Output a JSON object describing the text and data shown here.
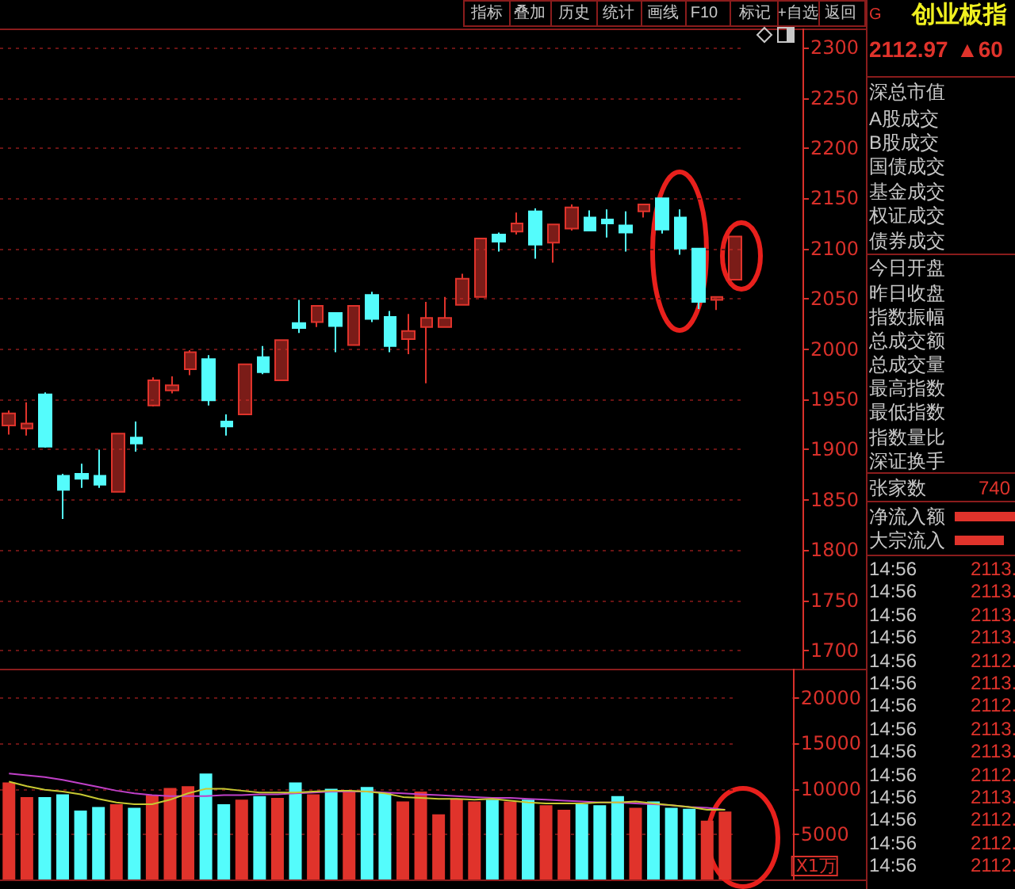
{
  "chart_data": [
    {
      "type": "candlestick",
      "categories": [
        null,
        null,
        null,
        null,
        null,
        null,
        null,
        null,
        null,
        null,
        null,
        null,
        null,
        null,
        null,
        null,
        null,
        null,
        null,
        null,
        null,
        null,
        null,
        null,
        null,
        null,
        null,
        null,
        null,
        null,
        null,
        null,
        null,
        null,
        null,
        null,
        null,
        null,
        null,
        null,
        null
      ],
      "ohlc": [
        [
          1924,
          1939,
          1915,
          1936
        ],
        [
          1921,
          1947,
          1914,
          1926
        ],
        [
          1955,
          1957,
          1902,
          1903
        ],
        [
          1874,
          1876,
          1831,
          1860
        ],
        [
          1876,
          1886,
          1862,
          1871
        ],
        [
          1874,
          1900,
          1862,
          1865
        ],
        [
          1858,
          1916,
          1858,
          1916
        ],
        [
          1912,
          1928,
          1898,
          1906
        ],
        [
          1944,
          1972,
          1943,
          1969
        ],
        [
          1959,
          1973,
          1956,
          1964
        ],
        [
          1980,
          1999,
          1974,
          1997
        ],
        [
          1990,
          1994,
          1944,
          1949
        ],
        [
          1928,
          1935,
          1914,
          1923
        ],
        [
          1935,
          1985,
          1935,
          1985
        ],
        [
          1992,
          2003,
          1975,
          1977
        ],
        [
          1969,
          2009,
          1969,
          2009
        ],
        [
          2026,
          2049,
          2016,
          2021
        ],
        [
          2027,
          2043,
          2022,
          2043
        ],
        [
          2036,
          2036,
          1997,
          2023
        ],
        [
          2004,
          2043,
          2004,
          2043
        ],
        [
          2054,
          2057,
          2027,
          2030
        ],
        [
          2032,
          2038,
          1997,
          2003
        ],
        [
          2010,
          2035,
          1995,
          2018
        ],
        [
          2022,
          2047,
          1966,
          2031
        ],
        [
          2022,
          2052,
          2022,
          2031
        ],
        [
          2044,
          2075,
          2044,
          2070
        ],
        [
          2052,
          2110,
          2052,
          2110
        ],
        [
          2114,
          2116,
          2097,
          2107
        ],
        [
          2117,
          2136,
          2114,
          2125
        ],
        [
          2137,
          2140,
          2090,
          2104
        ],
        [
          2106,
          2124,
          2086,
          2124
        ],
        [
          2120,
          2144,
          2118,
          2141
        ],
        [
          2131,
          2138,
          2118,
          2118
        ],
        [
          2129,
          2139,
          2111,
          2125
        ],
        [
          2123,
          2137,
          2097,
          2116
        ],
        [
          2137,
          2144,
          2131,
          2144
        ],
        [
          2150,
          2150,
          2115,
          2119
        ],
        [
          2131,
          2139,
          2094,
          2100
        ],
        [
          2100,
          2100,
          2040,
          2047
        ],
        [
          2049,
          2052,
          2039,
          2052
        ],
        [
          2069,
          2112,
          2069,
          2112
        ]
      ],
      "colors": [
        "#e0332b",
        "#e0332b",
        "#54fcfc",
        "#54fcfc",
        "#54fcfc",
        "#54fcfc",
        "#e0332b",
        "#54fcfc",
        "#e0332b",
        "#e0332b",
        "#e0332b",
        "#54fcfc",
        "#54fcfc",
        "#e0332b",
        "#54fcfc",
        "#e0332b",
        "#54fcfc",
        "#e0332b",
        "#54fcfc",
        "#e0332b",
        "#54fcfc",
        "#54fcfc",
        "#e0332b",
        "#e0332b",
        "#e0332b",
        "#e0332b",
        "#e0332b",
        "#54fcfc",
        "#e0332b",
        "#54fcfc",
        "#e0332b",
        "#e0332b",
        "#54fcfc",
        "#54fcfc",
        "#54fcfc",
        "#e0332b",
        "#54fcfc",
        "#54fcfc",
        "#54fcfc",
        "#e0332b",
        "#e0332b"
      ],
      "ylim": [
        1682,
        2319
      ],
      "yticks": [
        1700,
        1750,
        1800,
        1850,
        1900,
        1950,
        2000,
        2050,
        2100,
        2150,
        2200,
        2250,
        2300
      ],
      "grid": "y",
      "tick_labels": "y"
    },
    {
      "type": "bar",
      "ylabel": "X1万",
      "categories": [
        null,
        null,
        null,
        null,
        null,
        null,
        null,
        null,
        null,
        null,
        null,
        null,
        null,
        null,
        null,
        null,
        null,
        null,
        null,
        null,
        null,
        null,
        null,
        null,
        null,
        null,
        null,
        null,
        null,
        null,
        null,
        null,
        null,
        null,
        null,
        null,
        null,
        null,
        null,
        null,
        null
      ],
      "series": [
        {
          "type": "bar",
          "values": [
            10700,
            9100,
            9100,
            9400,
            7600,
            8000,
            8300,
            7900,
            9300,
            10100,
            10300,
            11700,
            8300,
            8800,
            9200,
            9000,
            10700,
            9400,
            10000,
            9800,
            10200,
            9600,
            8600,
            9700,
            7200,
            8900,
            8600,
            8800,
            8600,
            8800,
            8200,
            7700,
            8300,
            8200,
            9200,
            7900,
            8600,
            7900,
            7800,
            6500,
            7500
          ],
          "colors": [
            "#e0332b",
            "#e0332b",
            "#54fcfc",
            "#54fcfc",
            "#54fcfc",
            "#54fcfc",
            "#e0332b",
            "#54fcfc",
            "#e0332b",
            "#e0332b",
            "#e0332b",
            "#54fcfc",
            "#54fcfc",
            "#e0332b",
            "#54fcfc",
            "#e0332b",
            "#54fcfc",
            "#e0332b",
            "#54fcfc",
            "#e0332b",
            "#54fcfc",
            "#54fcfc",
            "#e0332b",
            "#e0332b",
            "#e0332b",
            "#e0332b",
            "#e0332b",
            "#54fcfc",
            "#e0332b",
            "#54fcfc",
            "#e0332b",
            "#e0332b",
            "#54fcfc",
            "#54fcfc",
            "#54fcfc",
            "#e0332b",
            "#54fcfc",
            "#54fcfc",
            "#54fcfc",
            "#e0332b",
            "#e0332b"
          ]
        },
        {
          "type": "line",
          "color": "#c040c8",
          "values": [
            11700,
            11500,
            11300,
            11000,
            10600,
            10200,
            9800,
            9500,
            9300,
            9200,
            9200,
            9200,
            9300,
            9300,
            9400,
            9400,
            9500,
            9600,
            9700,
            9700,
            9700,
            9600,
            9500,
            9400,
            9300,
            9200,
            9100,
            9000,
            9000,
            8900,
            8800,
            8700,
            8600,
            8500,
            8500,
            8400,
            8300,
            8200,
            8000,
            7900,
            7700
          ]
        },
        {
          "type": "line",
          "color": "#c8c832",
          "values": [
            10800,
            10300,
            9900,
            9700,
            9400,
            8900,
            8500,
            8300,
            8300,
            8800,
            9500,
            10000,
            10000,
            9800,
            9600,
            9600,
            9600,
            9700,
            9800,
            9800,
            9700,
            9500,
            9100,
            9000,
            8900,
            8900,
            8800,
            8900,
            8700,
            8500,
            8400,
            8400,
            8400,
            8500,
            8500,
            8600,
            8400,
            8200,
            8000,
            7700,
            7700
          ]
        }
      ],
      "ylim": [
        0,
        23250
      ],
      "yticks": [
        5000,
        10000,
        15000,
        20000
      ],
      "grid": "y",
      "tick_labels": "y"
    },
    {
      "type": "other",
      "title": "创业板指",
      "annotations": [
        "指标",
        "叠加",
        "历史",
        "统计",
        "画线",
        "F10",
        "标记",
        "+自选",
        "返回",
        "G",
        "2112.97",
        "▲60",
        "深总市值",
        "A股成交",
        "B股成交",
        "国债成交",
        "基金成交",
        "权证成交",
        "债券成交",
        "今日开盘",
        "昨日收盘",
        "指数振幅",
        "总成交额",
        "总成交量",
        "最高指数",
        "最低指数",
        "指数量比",
        "深证换手",
        "张家数",
        "740",
        "净流入额",
        "大宗流入",
        "14:56",
        "2113.",
        "14:56",
        "2113.",
        "14:56",
        "2113.",
        "14:56",
        "2113.",
        "14:56",
        "2112.",
        "14:56",
        "2113.",
        "14:56",
        "2112.",
        "14:56",
        "2113.",
        "14:56",
        "2113.",
        "14:56",
        "2112.",
        "14:56",
        "2113.",
        "14:56",
        "2112.",
        "14:56",
        "2112.",
        "14:56",
        "2112."
      ]
    }
  ]
}
